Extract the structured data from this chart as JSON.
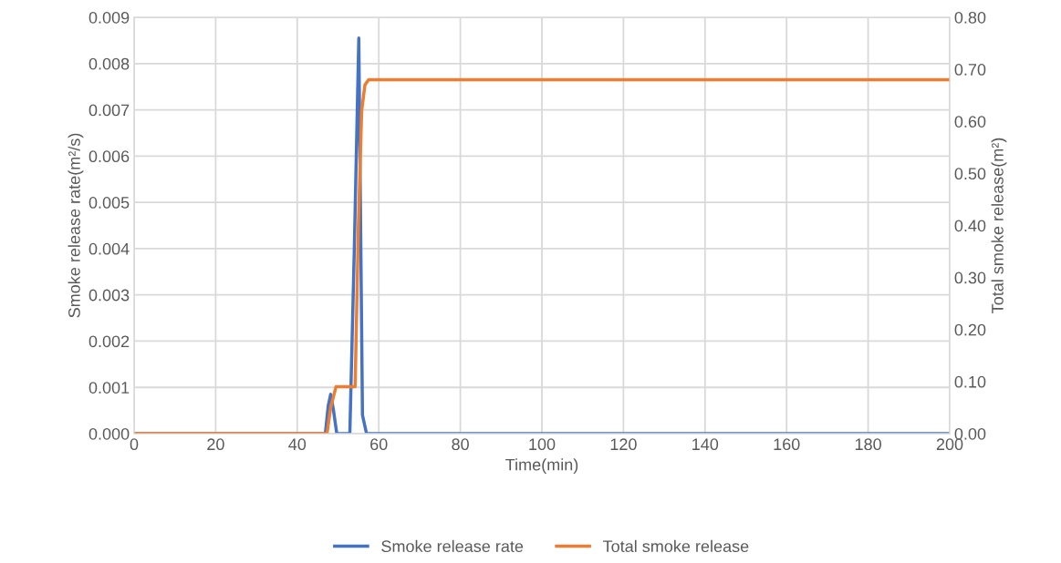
{
  "chart_data": {
    "type": "line",
    "xlabel": "Time(min)",
    "ylabel": "Smoke release rate(m²/s)",
    "y2label": "Total smoke release(m²)",
    "series": [
      {
        "name": "Smoke release rate",
        "color": "#4472c4",
        "x": [
          0,
          46.9,
          47.6,
          48.2,
          48.9,
          49.7,
          52.9,
          54.0,
          55.1,
          56.0,
          57.0,
          200
        ],
        "values": [
          0,
          0,
          0.0006,
          0.00085,
          0.0005,
          0,
          0,
          0.004,
          0.00855,
          0.0004,
          0,
          0
        ]
      },
      {
        "name": "Total smoke release",
        "color": "#ed7d31",
        "axis": "y2",
        "x": [
          0,
          47.3,
          48.2,
          49.5,
          54.2,
          55.0,
          55.8,
          56.6,
          57.5,
          200
        ],
        "values": [
          0,
          0,
          0.05,
          0.09,
          0.09,
          0.4,
          0.62,
          0.67,
          0.68,
          0.68
        ]
      }
    ],
    "xlim": [
      0,
      200
    ],
    "xticks": [
      0,
      20,
      40,
      60,
      80,
      100,
      120,
      140,
      160,
      180,
      200
    ],
    "ylim": [
      0,
      0.009
    ],
    "yticks": [
      {
        "value": 0,
        "label": "0.000"
      },
      {
        "value": 0.001,
        "label": "0.001"
      },
      {
        "value": 0.002,
        "label": "0.002"
      },
      {
        "value": 0.003,
        "label": "0.003"
      },
      {
        "value": 0.004,
        "label": "0.004"
      },
      {
        "value": 0.005,
        "label": "0.005"
      },
      {
        "value": 0.006,
        "label": "0.006"
      },
      {
        "value": 0.007,
        "label": "0.007"
      },
      {
        "value": 0.008,
        "label": "0.008"
      },
      {
        "value": 0.009,
        "label": "0.009"
      }
    ],
    "y2lim": [
      0,
      0.8
    ],
    "y2ticks": [
      {
        "value": 0,
        "label": "0.00"
      },
      {
        "value": 0.1,
        "label": "0.10"
      },
      {
        "value": 0.2,
        "label": "0.20"
      },
      {
        "value": 0.3,
        "label": "0.30"
      },
      {
        "value": 0.4,
        "label": "0.40"
      },
      {
        "value": 0.5,
        "label": "0.50"
      },
      {
        "value": 0.6,
        "label": "0.60"
      },
      {
        "value": 0.7,
        "label": "0.70"
      },
      {
        "value": 0.8,
        "label": "0.80"
      }
    ],
    "grid": true,
    "legend": "bottom"
  }
}
